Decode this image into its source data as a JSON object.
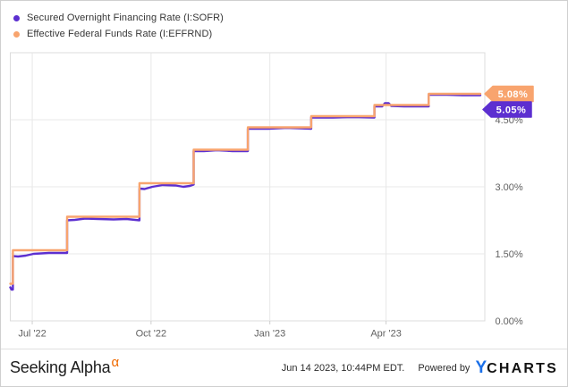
{
  "legend": {
    "items": [
      {
        "label": "Secured Overnight Financing Rate (I:SOFR)",
        "color": "#5c2fd0"
      },
      {
        "label": "Effective Federal Funds Rate (I:EFFRND)",
        "color": "#f8a46e"
      }
    ]
  },
  "chart_data": {
    "type": "line",
    "line_style": "step",
    "grid": true,
    "legend_position": "top-left",
    "x_axis": {
      "ticks": [
        {
          "day": 17,
          "label": "Jul '22"
        },
        {
          "day": 109,
          "label": "Oct '22"
        },
        {
          "day": 201,
          "label": "Jan '23"
        },
        {
          "day": 291,
          "label": "Apr '23"
        }
      ],
      "span_days": 364
    },
    "y_axis": {
      "min": 0,
      "max": 6,
      "unit": "%",
      "position": "right",
      "ticks": [
        {
          "value": 0,
          "label": "0.00%"
        },
        {
          "value": 1.5,
          "label": "1.50%"
        },
        {
          "value": 3,
          "label": "3.00%"
        },
        {
          "value": 4.5,
          "label": "4.50%"
        }
      ]
    },
    "series": [
      {
        "id": "sofr",
        "name": "Secured Overnight Financing Rate (I:SOFR)",
        "color": "#5c2fd0",
        "last_value_label": "5.05%",
        "points": [
          [
            0,
            0.75
          ],
          [
            1,
            0.7
          ],
          [
            2,
            0.7
          ],
          [
            2,
            1.45
          ],
          [
            6,
            1.44
          ],
          [
            12,
            1.46
          ],
          [
            18,
            1.5
          ],
          [
            30,
            1.52
          ],
          [
            44,
            1.52
          ],
          [
            44,
            2.25
          ],
          [
            50,
            2.26
          ],
          [
            58,
            2.29
          ],
          [
            68,
            2.28
          ],
          [
            80,
            2.27
          ],
          [
            90,
            2.28
          ],
          [
            100,
            2.25
          ],
          [
            100,
            2.96
          ],
          [
            104,
            2.95
          ],
          [
            110,
            3.0
          ],
          [
            118,
            3.04
          ],
          [
            128,
            3.03
          ],
          [
            134,
            3.0
          ],
          [
            139,
            3.02
          ],
          [
            142,
            3.05
          ],
          [
            142,
            3.8
          ],
          [
            150,
            3.8
          ],
          [
            160,
            3.82
          ],
          [
            172,
            3.8
          ],
          [
            184,
            3.8
          ],
          [
            184,
            4.3
          ],
          [
            200,
            4.3
          ],
          [
            214,
            4.32
          ],
          [
            224,
            4.31
          ],
          [
            233,
            4.3
          ],
          [
            233,
            4.55
          ],
          [
            250,
            4.55
          ],
          [
            266,
            4.56
          ],
          [
            282,
            4.55
          ],
          [
            282,
            4.8
          ],
          [
            288,
            4.8
          ],
          [
            290,
            4.87
          ],
          [
            293,
            4.87
          ],
          [
            295,
            4.81
          ],
          [
            305,
            4.8
          ],
          [
            324,
            4.8
          ],
          [
            324,
            5.06
          ],
          [
            338,
            5.06
          ],
          [
            350,
            5.05
          ],
          [
            364,
            5.05
          ]
        ]
      },
      {
        "id": "effrnd",
        "name": "Effective Federal Funds Rate (I:EFFRND)",
        "color": "#f8a46e",
        "last_value_label": "5.08%",
        "points": [
          [
            0,
            0.83
          ],
          [
            2,
            0.83
          ],
          [
            2,
            1.58
          ],
          [
            44,
            1.58
          ],
          [
            44,
            2.33
          ],
          [
            100,
            2.33
          ],
          [
            100,
            3.08
          ],
          [
            142,
            3.08
          ],
          [
            142,
            3.83
          ],
          [
            184,
            3.83
          ],
          [
            184,
            4.33
          ],
          [
            233,
            4.33
          ],
          [
            233,
            4.58
          ],
          [
            282,
            4.58
          ],
          [
            282,
            4.83
          ],
          [
            324,
            4.83
          ],
          [
            324,
            5.08
          ],
          [
            364,
            5.08
          ]
        ]
      }
    ]
  },
  "footer": {
    "brand": "Seeking Alpha",
    "alpha": "α",
    "timestamp": "Jun 14 2023, 10:44PM EDT.",
    "powered_by": "Powered by",
    "logo_y": "Y",
    "logo_charts": "CHARTS"
  }
}
